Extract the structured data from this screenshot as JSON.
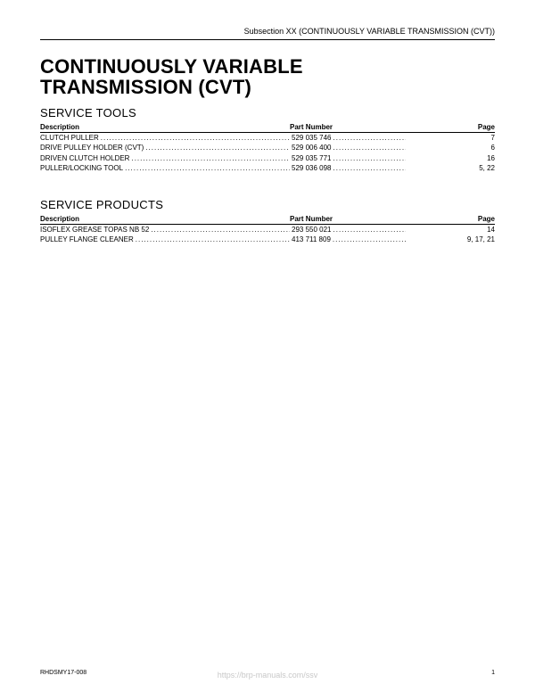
{
  "header": {
    "subsection": "Subsection XX (CONTINUOUSLY VARIABLE TRANSMISSION (CVT))"
  },
  "title_line1": "CONTINUOUSLY VARIABLE",
  "title_line2": "TRANSMISSION (CVT)",
  "sections": {
    "tools": {
      "heading": "SERVICE TOOLS",
      "col_desc": "Description",
      "col_part": "Part Number",
      "col_page": "Page",
      "rows": [
        {
          "desc": "CLUTCH PULLER",
          "part": "529 035 746",
          "page": "7"
        },
        {
          "desc": "DRIVE PULLEY HOLDER (CVT)",
          "part": "529 006 400",
          "page": "6"
        },
        {
          "desc": "DRIVEN CLUTCH HOLDER",
          "part": "529 035 771",
          "page": "16"
        },
        {
          "desc": "PULLER/LOCKING TOOL",
          "part": "529 036 098",
          "page": "5, 22"
        }
      ]
    },
    "products": {
      "heading": "SERVICE PRODUCTS",
      "col_desc": "Description",
      "col_part": "Part Number",
      "col_page": "Page",
      "rows": [
        {
          "desc": "ISOFLEX GREASE TOPAS NB 52",
          "part": "293 550 021",
          "page": "14"
        },
        {
          "desc": "PULLEY FLANGE CLEANER",
          "part": "413 711 809",
          "page": "9, 17, 21"
        }
      ]
    }
  },
  "footer": {
    "doc_code": "RHDSMY17-008",
    "page_num": "1"
  },
  "watermark": "https://brp-manuals.com/ssv",
  "dots": "............................................................................................................"
}
